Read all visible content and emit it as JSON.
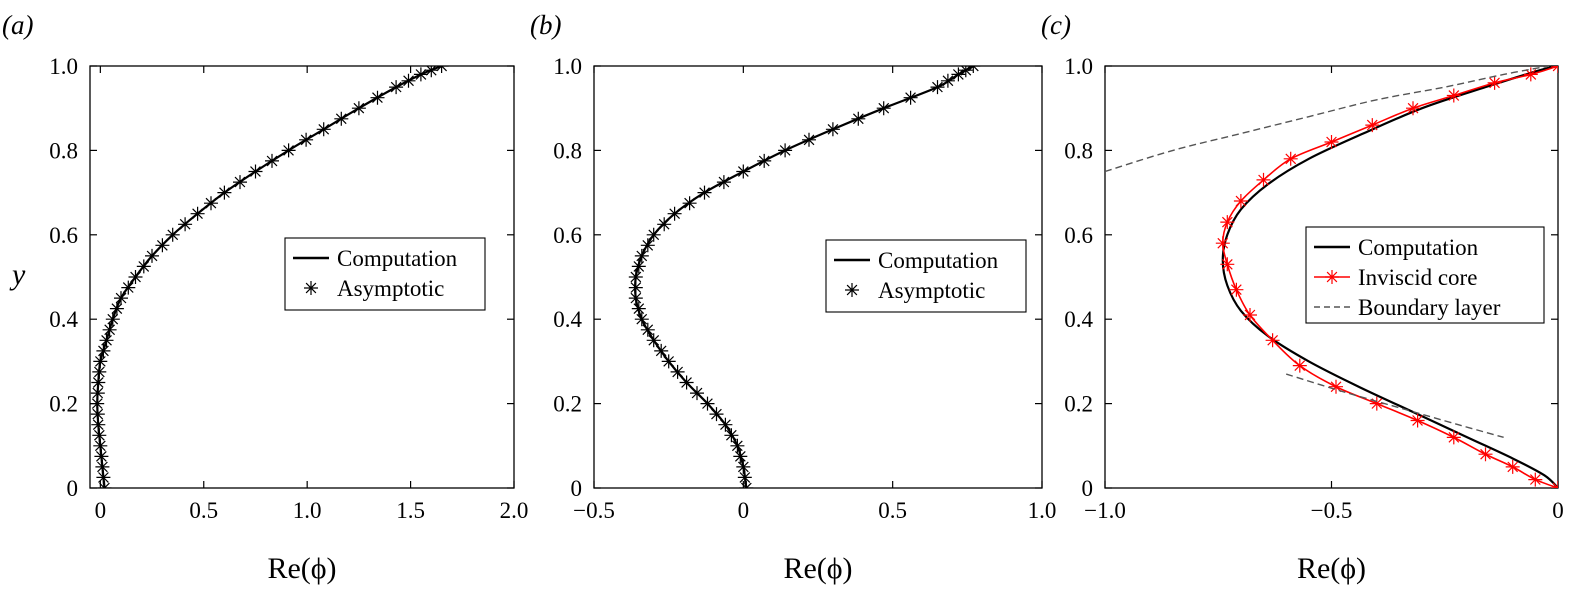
{
  "chart_data": [
    {
      "type": "line",
      "panel_label": "(a)",
      "xlabel": "Re(ϕ)",
      "ylabel": "y",
      "xlim": [
        -0.05,
        2.0
      ],
      "ylim": [
        0,
        1.0
      ],
      "xticks": [
        0,
        0.5,
        1.0,
        1.5,
        2.0
      ],
      "xtick_labels": [
        "0",
        "0.5",
        "1.0",
        "1.5",
        "2.0"
      ],
      "yticks": [
        0,
        0.2,
        0.4,
        0.6,
        0.8,
        1.0
      ],
      "ytick_labels": [
        "0",
        "0.2",
        "0.4",
        "0.6",
        "0.8",
        "1.0"
      ],
      "legend_position": "center-right",
      "series": [
        {
          "name": "Computation",
          "style": "solid",
          "color": "#000000",
          "x": [
            0.02,
            0.01,
            0.0,
            -0.01,
            -0.015,
            -0.01,
            0.0,
            0.03,
            0.06,
            0.1,
            0.17,
            0.25,
            0.35,
            0.47,
            0.6,
            0.75,
            0.91,
            1.08,
            1.25,
            1.43,
            1.55,
            1.65
          ],
          "y": [
            0,
            0.05,
            0.1,
            0.15,
            0.2,
            0.25,
            0.3,
            0.35,
            0.4,
            0.45,
            0.5,
            0.55,
            0.6,
            0.65,
            0.7,
            0.75,
            0.8,
            0.85,
            0.9,
            0.95,
            0.98,
            1.0
          ]
        },
        {
          "name": "Asymptotic",
          "style": "markers",
          "color": "#000000",
          "x": [
            0.02,
            0.01,
            0.0,
            -0.01,
            -0.015,
            -0.01,
            0.0,
            0.03,
            0.06,
            0.1,
            0.17,
            0.25,
            0.35,
            0.47,
            0.6,
            0.75,
            0.91,
            1.08,
            1.25,
            1.43,
            1.55,
            1.65
          ],
          "y": [
            0,
            0.05,
            0.1,
            0.15,
            0.2,
            0.25,
            0.3,
            0.35,
            0.4,
            0.45,
            0.5,
            0.55,
            0.6,
            0.65,
            0.7,
            0.75,
            0.8,
            0.85,
            0.9,
            0.95,
            0.98,
            1.0
          ]
        }
      ]
    },
    {
      "type": "line",
      "panel_label": "(b)",
      "xlabel": "Re(ϕ)",
      "ylabel": "",
      "xlim": [
        -0.5,
        1.0
      ],
      "ylim": [
        0,
        1.0
      ],
      "xticks": [
        -0.5,
        0,
        0.5,
        1.0
      ],
      "xtick_labels": [
        "−0.5",
        "0",
        "0.5",
        "1.0"
      ],
      "yticks": [
        0,
        0.2,
        0.4,
        0.6,
        0.8,
        1.0
      ],
      "ytick_labels": [
        "0",
        "0.2",
        "0.4",
        "0.6",
        "0.8",
        "1.0"
      ],
      "legend_position": "center-right",
      "series": [
        {
          "name": "Computation",
          "style": "solid",
          "color": "#000000",
          "x": [
            0.01,
            0.0,
            -0.02,
            -0.06,
            -0.12,
            -0.19,
            -0.25,
            -0.3,
            -0.34,
            -0.36,
            -0.36,
            -0.34,
            -0.3,
            -0.23,
            -0.13,
            0.0,
            0.14,
            0.3,
            0.47,
            0.65,
            0.72,
            0.77
          ],
          "y": [
            0,
            0.05,
            0.1,
            0.15,
            0.2,
            0.25,
            0.3,
            0.35,
            0.4,
            0.45,
            0.5,
            0.55,
            0.6,
            0.65,
            0.7,
            0.75,
            0.8,
            0.85,
            0.9,
            0.95,
            0.98,
            1.0
          ]
        },
        {
          "name": "Asymptotic",
          "style": "markers",
          "color": "#000000",
          "x": [
            0.01,
            0.0,
            -0.02,
            -0.06,
            -0.12,
            -0.19,
            -0.25,
            -0.3,
            -0.34,
            -0.36,
            -0.36,
            -0.34,
            -0.3,
            -0.23,
            -0.13,
            0.0,
            0.14,
            0.3,
            0.47,
            0.65,
            0.72,
            0.77
          ],
          "y": [
            0,
            0.05,
            0.1,
            0.15,
            0.2,
            0.25,
            0.3,
            0.35,
            0.4,
            0.45,
            0.5,
            0.55,
            0.6,
            0.65,
            0.7,
            0.75,
            0.8,
            0.85,
            0.9,
            0.95,
            0.98,
            1.0
          ]
        }
      ]
    },
    {
      "type": "line",
      "panel_label": "(c)",
      "xlabel": "Re(ϕ)",
      "ylabel": "",
      "xlim": [
        -1.0,
        0
      ],
      "ylim": [
        0,
        1.0
      ],
      "xticks": [
        -1.0,
        -0.5,
        0
      ],
      "xtick_labels": [
        "−1.0",
        "−0.5",
        "0"
      ],
      "yticks": [
        0,
        0.2,
        0.4,
        0.6,
        0.8,
        1.0
      ],
      "ytick_labels": [
        "0",
        "0.2",
        "0.4",
        "0.6",
        "0.8",
        "1.0"
      ],
      "legend_position": "center-right",
      "series": [
        {
          "name": "Computation",
          "style": "solid",
          "color": "#000000",
          "x": [
            0,
            -0.03,
            -0.1,
            -0.2,
            -0.32,
            -0.44,
            -0.55,
            -0.64,
            -0.7,
            -0.73,
            -0.74,
            -0.73,
            -0.7,
            -0.64,
            -0.55,
            -0.43,
            -0.3,
            -0.16,
            -0.04,
            0
          ],
          "y": [
            0,
            0.03,
            0.07,
            0.12,
            0.18,
            0.24,
            0.3,
            0.36,
            0.42,
            0.48,
            0.54,
            0.6,
            0.66,
            0.72,
            0.78,
            0.84,
            0.9,
            0.95,
            0.99,
            1.0
          ]
        },
        {
          "name": "Inviscid core",
          "style": "solid-markers",
          "color": "#ff0000",
          "x": [
            0,
            -0.05,
            -0.1,
            -0.16,
            -0.23,
            -0.31,
            -0.4,
            -0.49,
            -0.57,
            -0.63,
            -0.68,
            -0.71,
            -0.73,
            -0.74,
            -0.73,
            -0.7,
            -0.65,
            -0.59,
            -0.5,
            -0.41,
            -0.32,
            -0.23,
            -0.14,
            -0.06,
            0
          ],
          "y": [
            0,
            0.02,
            0.05,
            0.08,
            0.12,
            0.16,
            0.2,
            0.24,
            0.29,
            0.35,
            0.41,
            0.47,
            0.53,
            0.58,
            0.63,
            0.68,
            0.73,
            0.78,
            0.82,
            0.86,
            0.9,
            0.93,
            0.96,
            0.98,
            1.0
          ]
        },
        {
          "name": "Boundary layer",
          "style": "dashed",
          "color": "#555555",
          "segments": [
            {
              "x": [
                -1.0,
                -0.85,
                -0.7,
                -0.55,
                -0.4,
                -0.25,
                -0.12,
                -0.02
              ],
              "y": [
                0.75,
                0.8,
                0.84,
                0.88,
                0.92,
                0.95,
                0.98,
                1.0
              ]
            },
            {
              "x": [
                -0.6,
                -0.48,
                -0.35,
                -0.22,
                -0.12
              ],
              "y": [
                0.27,
                0.23,
                0.19,
                0.15,
                0.12
              ]
            }
          ]
        }
      ]
    }
  ]
}
